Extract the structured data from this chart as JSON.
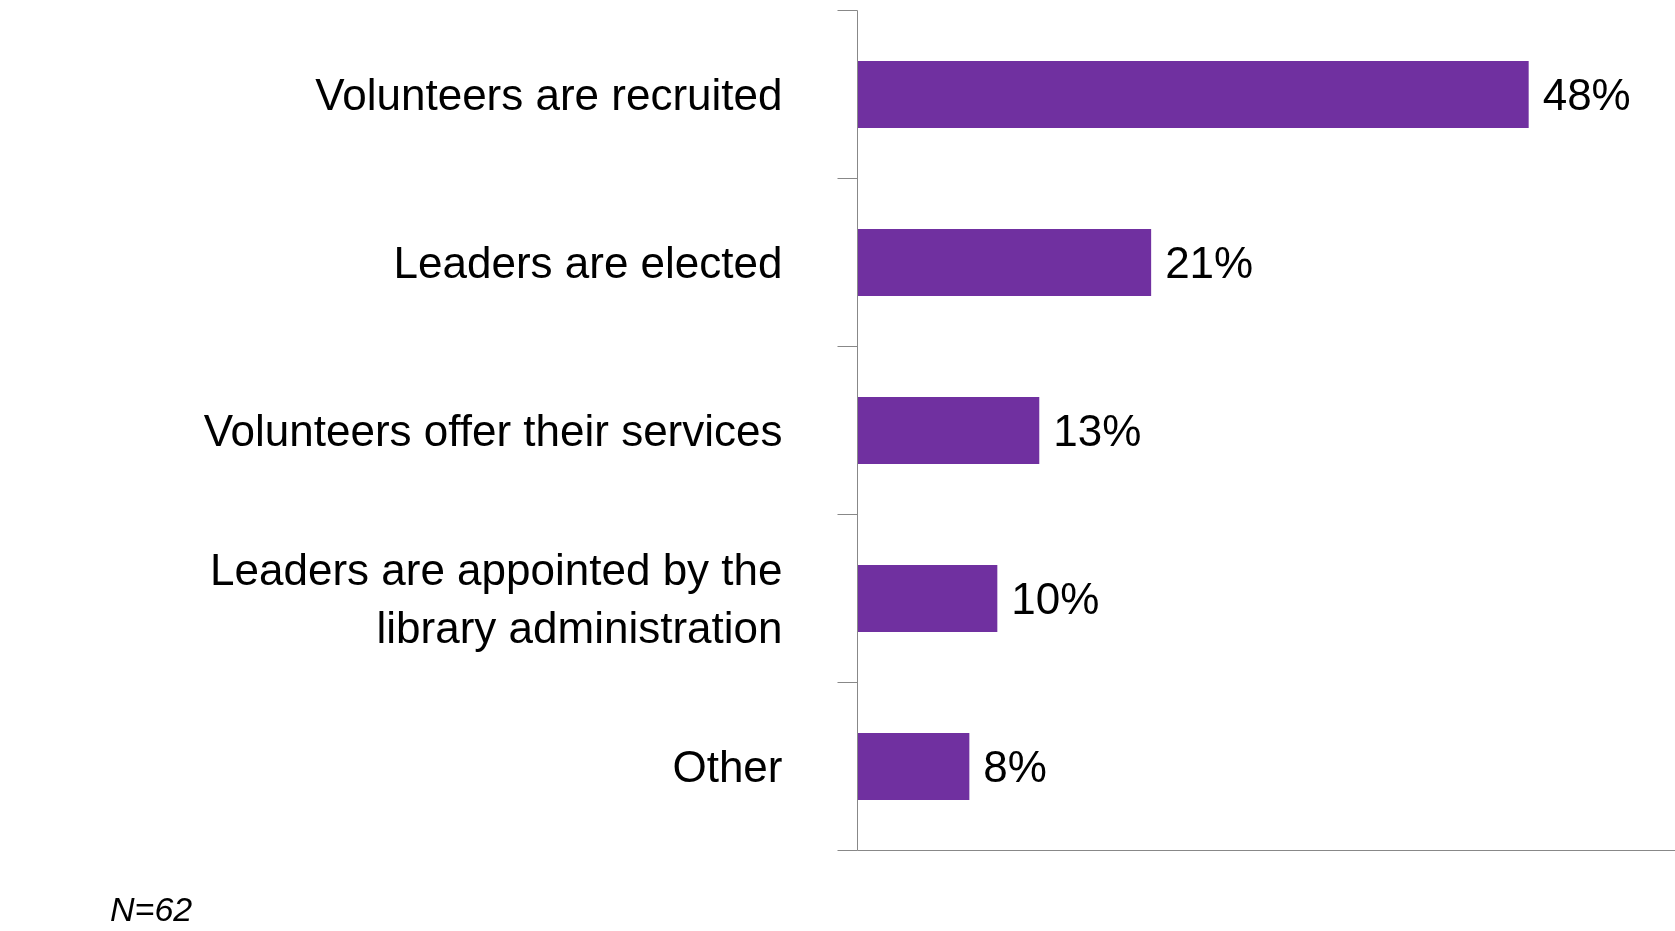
{
  "chart_data": {
    "type": "bar",
    "orientation": "horizontal",
    "categories": [
      "Volunteers are recruited",
      "Leaders are elected",
      "Volunteers offer their services",
      "Leaders are appointed by the library administration",
      "Other"
    ],
    "values": [
      48,
      21,
      13,
      10,
      8
    ],
    "value_labels": [
      "48%",
      "21%",
      "13%",
      "10%",
      "8%"
    ],
    "color": "#7030a0",
    "xlim": [
      0,
      58.5
    ],
    "tick_labels": "y",
    "grid": false,
    "annotations": [
      "N=62"
    ]
  }
}
